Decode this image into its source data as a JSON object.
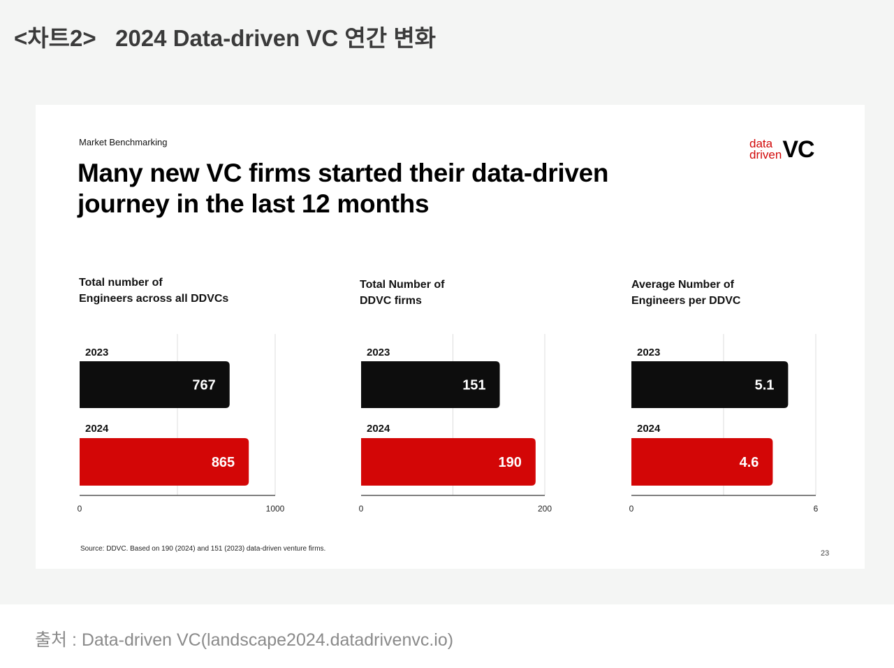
{
  "page": {
    "heading": "<차트2>   2024 Data-driven VC 연간 변화",
    "footer": "출처 : Data-driven VC(landscape2024.datadrivenvc.io)"
  },
  "slide": {
    "eyebrow": "Market Benchmarking",
    "headline_line1": "Many new VC firms started their data-driven",
    "headline_line2": "journey in the last 12 months",
    "logo": {
      "word1": "data",
      "word2": "driven",
      "mark": "VC"
    },
    "source": "Source: DDVC. Based on 190 (2024) and 151 (2023) data-driven venture firms.",
    "page_number": "23"
  },
  "colors": {
    "bar_2023": "#0d0d0d",
    "bar_2024": "#d30606",
    "grid": "#dcdcdc",
    "axis": "#555555"
  },
  "chart_data": [
    {
      "type": "bar",
      "title_line1": "Total number of",
      "title_line2": "Engineers across all DDVCs",
      "categories": [
        "2023",
        "2024"
      ],
      "values": [
        767,
        865
      ],
      "value_labels": [
        "767",
        "865"
      ],
      "xlim": [
        0,
        1000
      ],
      "tick_labels": [
        "0",
        "1000"
      ],
      "grid": true
    },
    {
      "type": "bar",
      "title_line1": "Total Number of",
      "title_line2": "DDVC firms",
      "categories": [
        "2023",
        "2024"
      ],
      "values": [
        151,
        190
      ],
      "value_labels": [
        "151",
        "190"
      ],
      "xlim": [
        0,
        200
      ],
      "tick_labels": [
        "0",
        "200"
      ],
      "grid": true
    },
    {
      "type": "bar",
      "title_line1": "Average Number of",
      "title_line2": "Engineers per DDVC",
      "categories": [
        "2023",
        "2024"
      ],
      "values": [
        5.1,
        4.6
      ],
      "value_labels": [
        "5.1",
        "4.6"
      ],
      "xlim": [
        0,
        6
      ],
      "tick_labels": [
        "0",
        "6"
      ],
      "grid": true
    }
  ]
}
